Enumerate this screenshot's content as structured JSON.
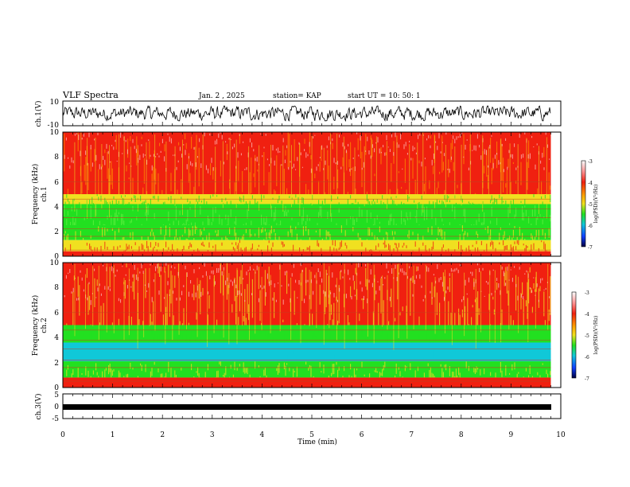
{
  "header": {
    "title": "VLF Spectra",
    "date": "Jan. 2 , 2025",
    "station": "station= KAP",
    "start": "start  UT =   10: 50: 1"
  },
  "colors": {
    "white": "#ffffff",
    "red": "#f02010",
    "orange": "#ff8a00",
    "yellow": "#f0e020",
    "green": "#22e020",
    "cyan": "#10c8d8",
    "blue": "#1040ff",
    "navy": "#000040"
  },
  "chart_data": [
    {
      "type": "line",
      "name": "ch1-waveform",
      "ylabel": "ch.1(V)",
      "ylim": [
        -10,
        10
      ],
      "yticks": [
        "10",
        "-10"
      ],
      "x_range_min": [
        0,
        9.8
      ],
      "signal": "noise waveform, amplitude roughly -5 to 5 V"
    },
    {
      "type": "heatmap",
      "name": "ch1-spectrogram",
      "ylabel": "ch.1\nFrequency  (kHz)",
      "ylim": [
        0,
        10
      ],
      "yticks": [
        "0",
        "2",
        "4",
        "6",
        "8",
        "10"
      ],
      "xlim": [
        0,
        10
      ],
      "data_extent_min": [
        0,
        9.8
      ],
      "bands_khz": [
        {
          "from": 5,
          "to": 10,
          "level": "red"
        },
        {
          "from": 4.2,
          "to": 5,
          "level": "yellow-green"
        },
        {
          "from": 2.5,
          "to": 4.2,
          "level": "green"
        },
        {
          "from": 1.3,
          "to": 2.5,
          "level": "green-yellow"
        },
        {
          "from": 0.4,
          "to": 1.3,
          "level": "yellow-orange"
        },
        {
          "from": 0,
          "to": 0.4,
          "level": "red"
        }
      ],
      "colorbar": {
        "label": "log(PSD)(V²/Hz)",
        "ticks": [
          "-3",
          "-4",
          "-5",
          "-6",
          "-7"
        ],
        "range": [
          -7,
          -3
        ]
      }
    },
    {
      "type": "heatmap",
      "name": "ch2-spectrogram",
      "ylabel": "ch.2\nFrequency  (kHz)",
      "ylim": [
        0,
        10
      ],
      "yticks": [
        "0",
        "2",
        "4",
        "6",
        "8",
        "10"
      ],
      "xlim": [
        0,
        10
      ],
      "data_extent_min": [
        0,
        9.8
      ],
      "bands_khz": [
        {
          "from": 5,
          "to": 10,
          "level": "red-yellow"
        },
        {
          "from": 3.6,
          "to": 5,
          "level": "green"
        },
        {
          "from": 2.1,
          "to": 3.6,
          "level": "cyan"
        },
        {
          "from": 0.8,
          "to": 2.1,
          "level": "green"
        },
        {
          "from": 0,
          "to": 0.8,
          "level": "red"
        }
      ],
      "colorbar": {
        "label": "log(PSD)(V²/Hz)",
        "ticks": [
          "-3",
          "-4",
          "-5",
          "-6",
          "-7"
        ],
        "range": [
          -7,
          -3
        ]
      }
    },
    {
      "type": "line",
      "name": "ch3-waveform",
      "ylabel": "ch.3(V)",
      "ylim": [
        -5,
        5
      ],
      "yticks": [
        "5",
        "0",
        "-5"
      ],
      "xlabel": "Time  (min)",
      "xlim": [
        0,
        10
      ],
      "xticks": [
        "0",
        "1",
        "2",
        "3",
        "4",
        "5",
        "6",
        "7",
        "8",
        "9",
        "10"
      ],
      "signal": "dense oscillation between about -0.6 and 0.6 V"
    }
  ]
}
